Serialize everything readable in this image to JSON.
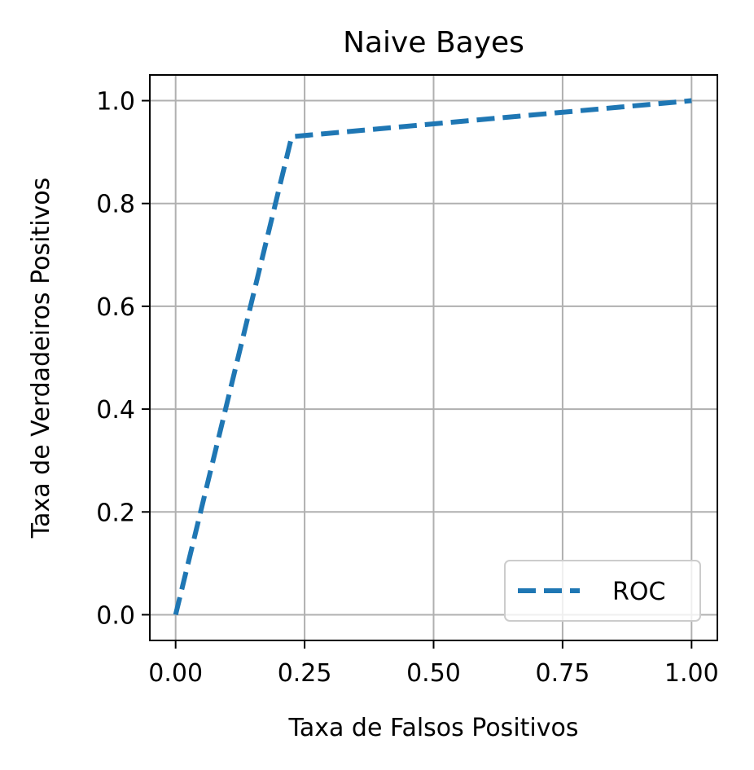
{
  "chart_data": {
    "type": "line",
    "title": "Naive Bayes",
    "xlabel": "Taxa de Falsos Positivos",
    "ylabel": "Taxa de Verdadeiros Positivos",
    "xlim": [
      -0.05,
      1.05
    ],
    "ylim": [
      -0.05,
      1.05
    ],
    "xticks": [
      0.0,
      0.25,
      0.5,
      0.75,
      1.0
    ],
    "xtick_labels": [
      "0.00",
      "0.25",
      "0.50",
      "0.75",
      "1.00"
    ],
    "yticks": [
      0.0,
      0.2,
      0.4,
      0.6,
      0.8,
      1.0
    ],
    "ytick_labels": [
      "0.0",
      "0.2",
      "0.4",
      "0.6",
      "0.8",
      "1.0"
    ],
    "grid": true,
    "legend_position": "lower-right",
    "series": [
      {
        "name": "ROC",
        "x": [
          0.0,
          0.225,
          1.0
        ],
        "y": [
          0.0,
          0.93,
          1.0
        ],
        "color": "#1f77b4",
        "style": "dashed"
      }
    ]
  }
}
